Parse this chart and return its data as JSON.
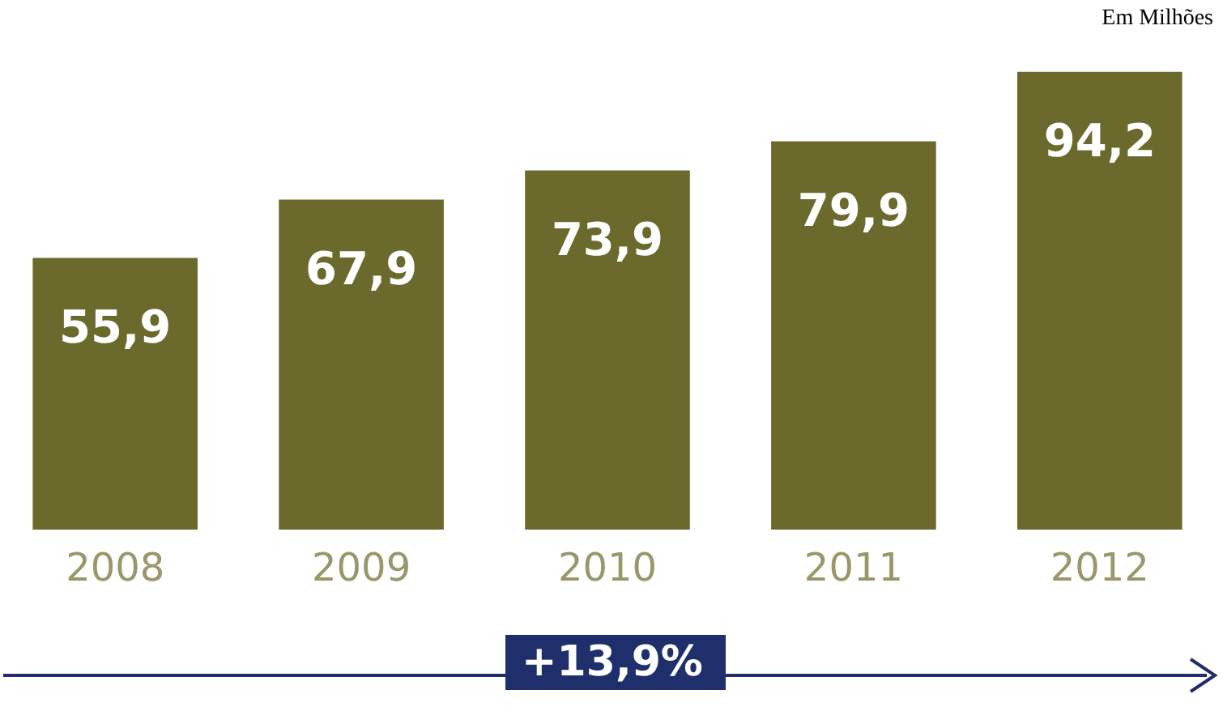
{
  "chart_data": {
    "type": "bar",
    "categories": [
      "2008",
      "2009",
      "2010",
      "2011",
      "2012"
    ],
    "values": [
      55.9,
      67.9,
      73.9,
      79.9,
      94.2
    ],
    "value_labels": [
      "55,9",
      "67,9",
      "73,9",
      "79,9",
      "94,2"
    ],
    "color": "#6b6a2c",
    "annotations": [
      "Em Milhões",
      "+13,9%"
    ]
  }
}
